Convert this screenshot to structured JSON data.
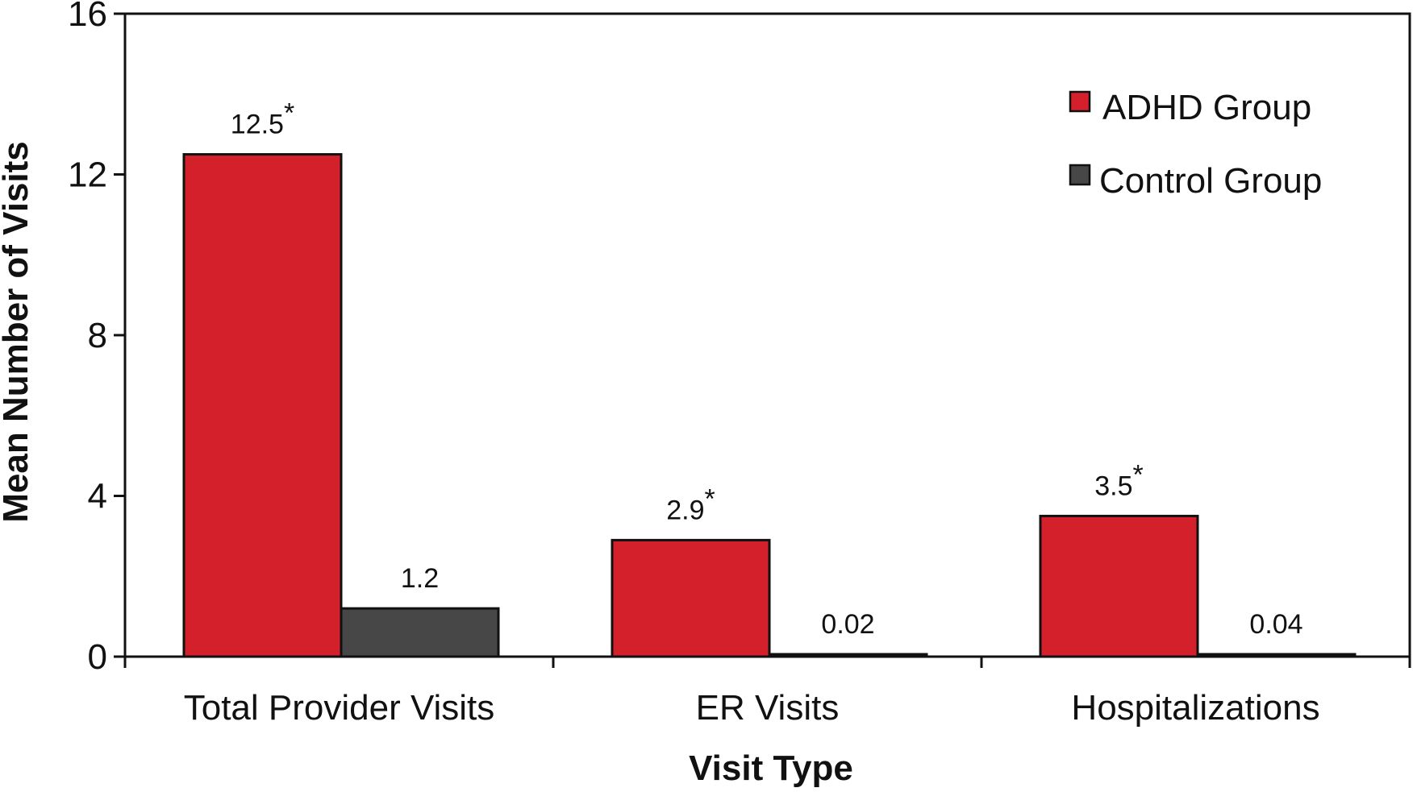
{
  "chart_data": {
    "type": "bar",
    "title": "",
    "xlabel": "Visit Type",
    "ylabel": "Mean Number of Visits",
    "ylim": [
      0,
      16
    ],
    "yticks": [
      0,
      4,
      8,
      12,
      16
    ],
    "grid": false,
    "legend_position": "top-right",
    "categories": [
      "Total Provider Visits",
      "ER Visits",
      "Hospitalizations"
    ],
    "series": [
      {
        "name": "ADHD Group",
        "color": "#d4202a",
        "values": [
          12.5,
          2.9,
          3.5
        ],
        "labels": [
          "12.5",
          "2.9",
          "3.5"
        ],
        "significance": [
          "*",
          "*",
          "*"
        ]
      },
      {
        "name": "Control Group",
        "color": "#474747",
        "values": [
          1.2,
          0.02,
          0.04
        ],
        "labels": [
          "1.2",
          "0.02",
          "0.04"
        ],
        "significance": [
          "",
          "",
          ""
        ]
      }
    ]
  }
}
